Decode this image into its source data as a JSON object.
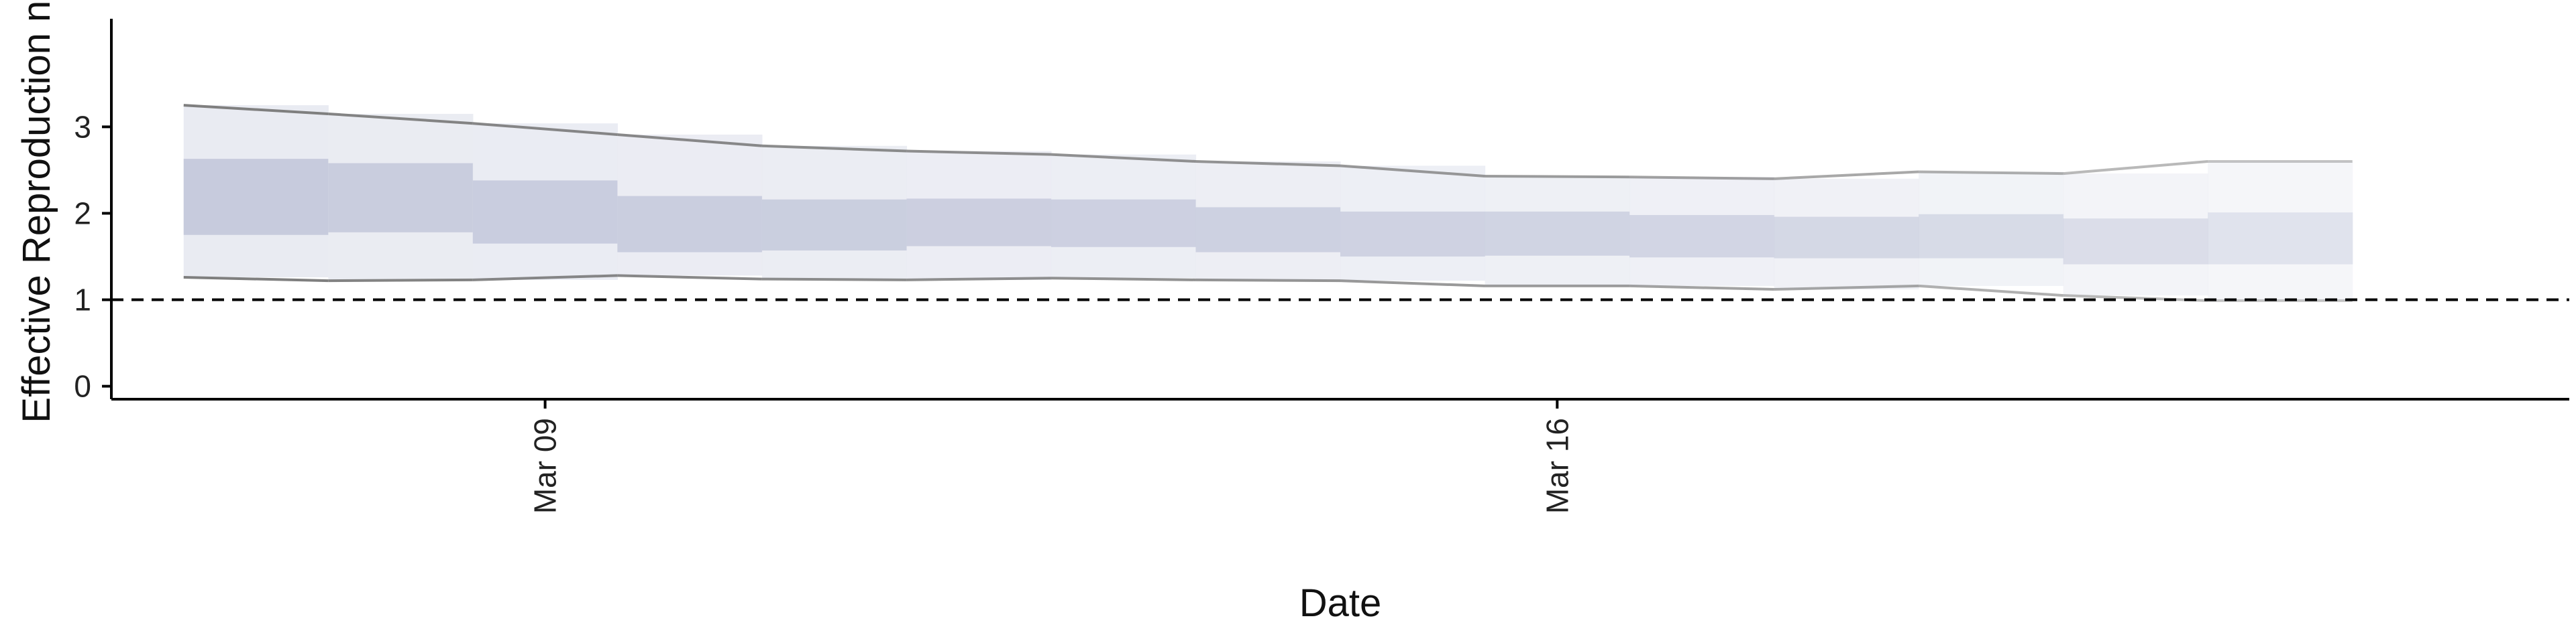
{
  "chart_data": {
    "type": "area",
    "title": "",
    "xlabel": "Date",
    "ylabel": "Effective Reproduction no.",
    "x_type": "date",
    "xlim": [
      "2020-03-06",
      "2020-03-23"
    ],
    "ylim": [
      -0.15,
      4.25
    ],
    "x_ticks": [
      {
        "date": "2020-03-09",
        "label": "Mar 09"
      },
      {
        "date": "2020-03-16",
        "label": "Mar 16"
      }
    ],
    "y_ticks": [
      {
        "value": 0,
        "label": "0"
      },
      {
        "value": 1,
        "label": "1"
      },
      {
        "value": 2,
        "label": "2"
      },
      {
        "value": 3,
        "label": "3"
      }
    ],
    "reference_line": {
      "y": 1,
      "style": "dashed"
    },
    "grid": false,
    "colors": {
      "inner_band": "#c7cbdd",
      "outer_band": "#e9ebf2",
      "outline": "#7f7f7f"
    },
    "series": [
      {
        "date": "2020-03-07",
        "lower90": 1.26,
        "lower50": 1.75,
        "upper50": 2.63,
        "upper90": 3.25,
        "opacity": 1.0
      },
      {
        "date": "2020-03-08",
        "lower90": 1.22,
        "lower50": 1.78,
        "upper50": 2.58,
        "upper90": 3.15,
        "opacity": 0.97
      },
      {
        "date": "2020-03-09",
        "lower90": 1.23,
        "lower50": 1.65,
        "upper50": 2.38,
        "upper90": 3.04,
        "opacity": 0.95
      },
      {
        "date": "2020-03-10",
        "lower90": 1.28,
        "lower50": 1.55,
        "upper50": 2.2,
        "upper90": 2.91,
        "opacity": 0.93
      },
      {
        "date": "2020-03-11",
        "lower90": 1.24,
        "lower50": 1.57,
        "upper50": 2.16,
        "upper90": 2.78,
        "opacity": 0.9
      },
      {
        "date": "2020-03-12",
        "lower90": 1.23,
        "lower50": 1.62,
        "upper50": 2.17,
        "upper90": 2.72,
        "opacity": 0.88
      },
      {
        "date": "2020-03-13",
        "lower90": 1.25,
        "lower50": 1.61,
        "upper50": 2.16,
        "upper90": 2.68,
        "opacity": 0.86
      },
      {
        "date": "2020-03-14",
        "lower90": 1.23,
        "lower50": 1.55,
        "upper50": 2.07,
        "upper90": 2.6,
        "opacity": 0.83
      },
      {
        "date": "2020-03-15",
        "lower90": 1.22,
        "lower50": 1.5,
        "upper50": 2.02,
        "upper90": 2.55,
        "opacity": 0.8
      },
      {
        "date": "2020-03-16",
        "lower90": 1.16,
        "lower50": 1.51,
        "upper50": 2.02,
        "upper90": 2.43,
        "opacity": 0.77
      },
      {
        "date": "2020-03-17",
        "lower90": 1.16,
        "lower50": 1.49,
        "upper50": 1.98,
        "upper90": 2.42,
        "opacity": 0.73
      },
      {
        "date": "2020-03-18",
        "lower90": 1.12,
        "lower50": 1.48,
        "upper50": 1.96,
        "upper90": 2.4,
        "opacity": 0.68
      },
      {
        "date": "2020-03-19",
        "lower90": 1.16,
        "lower50": 1.48,
        "upper50": 1.99,
        "upper90": 2.48,
        "opacity": 0.62
      },
      {
        "date": "2020-03-20",
        "lower90": 1.05,
        "lower50": 1.41,
        "upper50": 1.94,
        "upper90": 2.46,
        "opacity": 0.55
      },
      {
        "date": "2020-03-21",
        "lower90": 0.99,
        "lower50": 1.41,
        "upper50": 2.01,
        "upper90": 2.6,
        "opacity": 0.45
      }
    ]
  }
}
